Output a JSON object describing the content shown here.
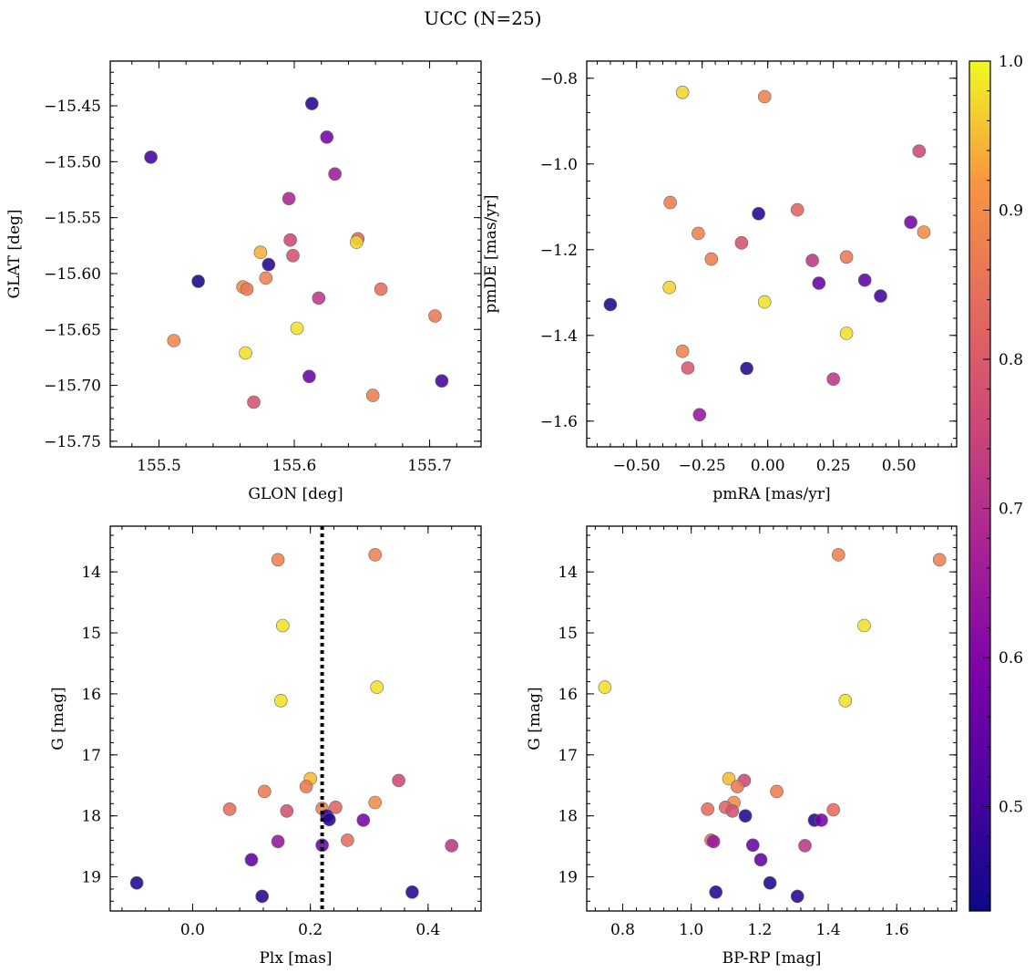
{
  "figure": {
    "title": "UCC (N=25)"
  },
  "colorbar": {
    "min": 0.43,
    "max": 1.0,
    "ticks": [
      0.5,
      0.6,
      0.7,
      0.8,
      0.9,
      1.0
    ],
    "tick_labels": [
      "0.5",
      "0.6",
      "0.7",
      "0.8",
      "0.9",
      "1.0"
    ],
    "colormap": "plasma"
  },
  "chart_data": [
    {
      "type": "scatter",
      "id": "glon-glat",
      "xlabel": "GLON [deg]",
      "ylabel": "GLAT [deg]",
      "xlim": [
        155.464,
        155.738
      ],
      "ylim": [
        -15.755,
        -15.41
      ],
      "x_ticks": [
        155.5,
        155.6,
        155.7
      ],
      "x_tick_labels": [
        "155.5",
        "155.6",
        "155.7"
      ],
      "y_ticks": [
        -15.75,
        -15.7,
        -15.65,
        -15.6,
        -15.55,
        -15.5,
        -15.45
      ],
      "y_tick_labels": [
        "−15.75",
        "−15.70",
        "−15.65",
        "−15.60",
        "−15.55",
        "−15.50",
        "−15.45"
      ],
      "points": [
        {
          "x": 155.613,
          "y": -15.448,
          "c": 0.46
        },
        {
          "x": 155.494,
          "y": -15.496,
          "c": 0.5
        },
        {
          "x": 155.624,
          "y": -15.478,
          "c": 0.58
        },
        {
          "x": 155.63,
          "y": -15.511,
          "c": 0.66
        },
        {
          "x": 155.596,
          "y": -15.533,
          "c": 0.68
        },
        {
          "x": 155.597,
          "y": -15.57,
          "c": 0.76
        },
        {
          "x": 155.647,
          "y": -15.569,
          "c": 0.83
        },
        {
          "x": 155.646,
          "y": -15.572,
          "c": 0.97
        },
        {
          "x": 155.575,
          "y": -15.581,
          "c": 0.94
        },
        {
          "x": 155.599,
          "y": -15.584,
          "c": 0.78
        },
        {
          "x": 155.581,
          "y": -15.592,
          "c": 0.46
        },
        {
          "x": 155.529,
          "y": -15.607,
          "c": 0.44
        },
        {
          "x": 155.579,
          "y": -15.604,
          "c": 0.88
        },
        {
          "x": 155.562,
          "y": -15.612,
          "c": 0.9
        },
        {
          "x": 155.565,
          "y": -15.614,
          "c": 0.86
        },
        {
          "x": 155.664,
          "y": -15.614,
          "c": 0.84
        },
        {
          "x": 155.618,
          "y": -15.622,
          "c": 0.72
        },
        {
          "x": 155.704,
          "y": -15.638,
          "c": 0.86
        },
        {
          "x": 155.602,
          "y": -15.649,
          "c": 0.98
        },
        {
          "x": 155.511,
          "y": -15.66,
          "c": 0.89
        },
        {
          "x": 155.564,
          "y": -15.671,
          "c": 0.98
        },
        {
          "x": 155.611,
          "y": -15.692,
          "c": 0.56
        },
        {
          "x": 155.709,
          "y": -15.696,
          "c": 0.5
        },
        {
          "x": 155.658,
          "y": -15.709,
          "c": 0.87
        },
        {
          "x": 155.57,
          "y": -15.715,
          "c": 0.78
        }
      ]
    },
    {
      "type": "scatter",
      "id": "pmra-pmde",
      "xlabel": "pmRA [mas/yr]",
      "ylabel": "pmDE [mas/yr]",
      "xlim": [
        -0.69,
        0.72
      ],
      "ylim": [
        -1.66,
        -0.76
      ],
      "x_ticks": [
        -0.5,
        -0.25,
        0.0,
        0.25,
        0.5
      ],
      "x_tick_labels": [
        "−0.50",
        "−0.25",
        "0.00",
        "0.25",
        "0.50"
      ],
      "y_ticks": [
        -1.6,
        -1.4,
        -1.2,
        -1.0,
        -0.8
      ],
      "y_tick_labels": [
        "−1.6",
        "−1.4",
        "−1.2",
        "−1.0",
        "−0.8"
      ],
      "points": [
        {
          "x": -0.325,
          "y": -0.833,
          "c": 0.97
        },
        {
          "x": -0.012,
          "y": -0.843,
          "c": 0.88
        },
        {
          "x": 0.577,
          "y": -0.97,
          "c": 0.76
        },
        {
          "x": -0.372,
          "y": -1.09,
          "c": 0.87
        },
        {
          "x": 0.113,
          "y": -1.107,
          "c": 0.82
        },
        {
          "x": -0.035,
          "y": -1.116,
          "c": 0.46
        },
        {
          "x": 0.545,
          "y": -1.136,
          "c": 0.58
        },
        {
          "x": -0.265,
          "y": -1.162,
          "c": 0.88
        },
        {
          "x": 0.595,
          "y": -1.159,
          "c": 0.9
        },
        {
          "x": -0.1,
          "y": -1.184,
          "c": 0.78
        },
        {
          "x": -0.215,
          "y": -1.222,
          "c": 0.87
        },
        {
          "x": 0.17,
          "y": -1.225,
          "c": 0.72
        },
        {
          "x": 0.3,
          "y": -1.217,
          "c": 0.86
        },
        {
          "x": 0.37,
          "y": -1.271,
          "c": 0.54
        },
        {
          "x": 0.195,
          "y": -1.278,
          "c": 0.55
        },
        {
          "x": -0.375,
          "y": -1.288,
          "c": 0.97
        },
        {
          "x": 0.43,
          "y": -1.308,
          "c": 0.5
        },
        {
          "x": -0.012,
          "y": -1.322,
          "c": 0.98
        },
        {
          "x": -0.6,
          "y": -1.328,
          "c": 0.45
        },
        {
          "x": 0.3,
          "y": -1.395,
          "c": 0.98
        },
        {
          "x": -0.325,
          "y": -1.437,
          "c": 0.88
        },
        {
          "x": -0.305,
          "y": -1.476,
          "c": 0.79
        },
        {
          "x": -0.08,
          "y": -1.477,
          "c": 0.46
        },
        {
          "x": 0.25,
          "y": -1.502,
          "c": 0.72
        },
        {
          "x": -0.26,
          "y": -1.585,
          "c": 0.64
        }
      ]
    },
    {
      "type": "scatter",
      "id": "plx-g",
      "xlabel": "Plx [mas]",
      "ylabel": "G [mag]",
      "xlim": [
        -0.14,
        0.49
      ],
      "ylim": [
        19.56,
        13.25
      ],
      "y_inverted": true,
      "x_ticks": [
        0.0,
        0.2,
        0.4
      ],
      "x_tick_labels": [
        "0.0",
        "0.2",
        "0.4"
      ],
      "y_ticks": [
        14,
        15,
        16,
        17,
        18,
        19
      ],
      "y_tick_labels": [
        "14",
        "15",
        "16",
        "17",
        "18",
        "19"
      ],
      "reference_line": {
        "x": 0.22,
        "style": "dotted"
      },
      "points": [
        {
          "x": 0.145,
          "y": 13.8,
          "c": 0.88
        },
        {
          "x": 0.31,
          "y": 13.72,
          "c": 0.88
        },
        {
          "x": 0.153,
          "y": 14.88,
          "c": 0.98
        },
        {
          "x": 0.313,
          "y": 15.89,
          "c": 0.98
        },
        {
          "x": 0.15,
          "y": 16.11,
          "c": 0.98
        },
        {
          "x": 0.35,
          "y": 17.42,
          "c": 0.76
        },
        {
          "x": 0.2,
          "y": 17.39,
          "c": 0.95
        },
        {
          "x": 0.193,
          "y": 17.52,
          "c": 0.86
        },
        {
          "x": 0.122,
          "y": 17.6,
          "c": 0.87
        },
        {
          "x": 0.31,
          "y": 17.78,
          "c": 0.9
        },
        {
          "x": 0.243,
          "y": 17.86,
          "c": 0.82
        },
        {
          "x": 0.063,
          "y": 17.89,
          "c": 0.84
        },
        {
          "x": 0.16,
          "y": 17.92,
          "c": 0.78
        },
        {
          "x": 0.22,
          "y": 17.88,
          "c": 0.88
        },
        {
          "x": 0.228,
          "y": 18.0,
          "c": 0.46
        },
        {
          "x": 0.232,
          "y": 18.06,
          "c": 0.46
        },
        {
          "x": 0.29,
          "y": 18.07,
          "c": 0.58
        },
        {
          "x": 0.263,
          "y": 18.4,
          "c": 0.84
        },
        {
          "x": 0.145,
          "y": 18.42,
          "c": 0.64
        },
        {
          "x": 0.44,
          "y": 18.49,
          "c": 0.72
        },
        {
          "x": 0.22,
          "y": 18.48,
          "c": 0.56
        },
        {
          "x": 0.1,
          "y": 18.72,
          "c": 0.54
        },
        {
          "x": -0.095,
          "y": 19.1,
          "c": 0.45
        },
        {
          "x": 0.373,
          "y": 19.25,
          "c": 0.46
        },
        {
          "x": 0.118,
          "y": 19.32,
          "c": 0.46
        }
      ]
    },
    {
      "type": "scatter",
      "id": "bprp-g",
      "xlabel": "BP-RP [mag]",
      "ylabel": "G [mag]",
      "xlim": [
        0.695,
        1.775
      ],
      "ylim": [
        19.56,
        13.25
      ],
      "y_inverted": true,
      "x_ticks": [
        0.8,
        1.0,
        1.2,
        1.4,
        1.6
      ],
      "x_tick_labels": [
        "0.8",
        "1.0",
        "1.2",
        "1.4",
        "1.6"
      ],
      "y_ticks": [
        14,
        15,
        16,
        17,
        18,
        19
      ],
      "y_tick_labels": [
        "14",
        "15",
        "16",
        "17",
        "18",
        "19"
      ],
      "points": [
        {
          "x": 1.43,
          "y": 13.72,
          "c": 0.88
        },
        {
          "x": 1.725,
          "y": 13.8,
          "c": 0.88
        },
        {
          "x": 1.505,
          "y": 14.88,
          "c": 0.98
        },
        {
          "x": 0.748,
          "y": 15.89,
          "c": 0.98
        },
        {
          "x": 1.45,
          "y": 16.11,
          "c": 0.98
        },
        {
          "x": 1.11,
          "y": 17.39,
          "c": 0.95
        },
        {
          "x": 1.155,
          "y": 17.42,
          "c": 0.76
        },
        {
          "x": 1.135,
          "y": 17.52,
          "c": 0.86
        },
        {
          "x": 1.25,
          "y": 17.6,
          "c": 0.87
        },
        {
          "x": 1.125,
          "y": 17.78,
          "c": 0.9
        },
        {
          "x": 1.1,
          "y": 17.86,
          "c": 0.82
        },
        {
          "x": 1.048,
          "y": 17.89,
          "c": 0.84
        },
        {
          "x": 1.12,
          "y": 17.92,
          "c": 0.78
        },
        {
          "x": 1.415,
          "y": 17.9,
          "c": 0.84
        },
        {
          "x": 1.158,
          "y": 18.0,
          "c": 0.46
        },
        {
          "x": 1.36,
          "y": 18.07,
          "c": 0.46
        },
        {
          "x": 1.38,
          "y": 18.07,
          "c": 0.58
        },
        {
          "x": 1.058,
          "y": 18.4,
          "c": 0.84
        },
        {
          "x": 1.065,
          "y": 18.42,
          "c": 0.64
        },
        {
          "x": 1.332,
          "y": 18.49,
          "c": 0.72
        },
        {
          "x": 1.18,
          "y": 18.48,
          "c": 0.56
        },
        {
          "x": 1.203,
          "y": 18.72,
          "c": 0.54
        },
        {
          "x": 1.23,
          "y": 19.1,
          "c": 0.45
        },
        {
          "x": 1.072,
          "y": 19.25,
          "c": 0.46
        },
        {
          "x": 1.31,
          "y": 19.32,
          "c": 0.46
        }
      ]
    }
  ]
}
